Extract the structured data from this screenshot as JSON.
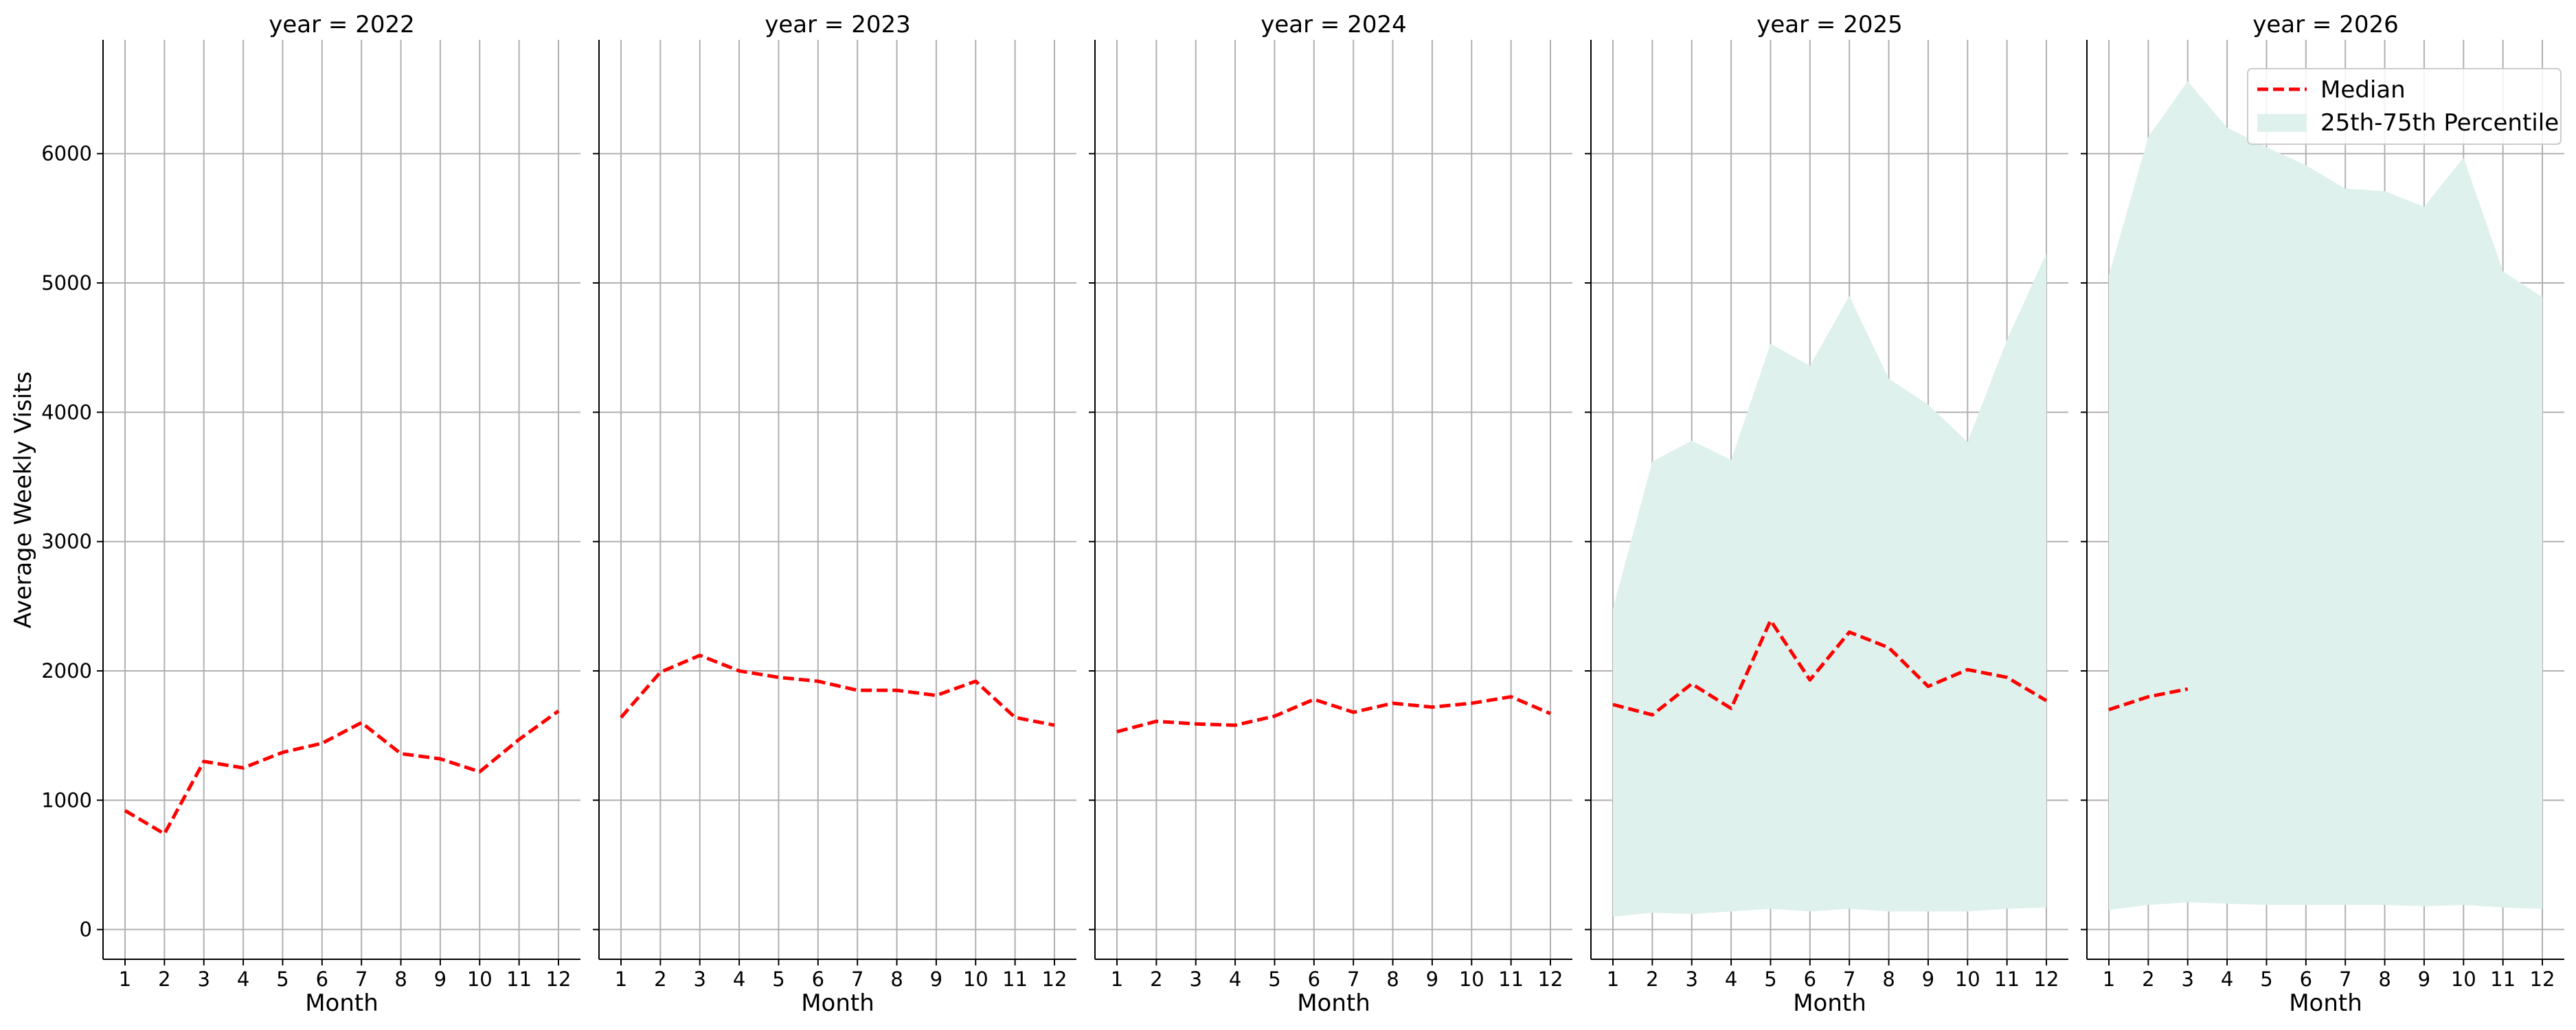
{
  "chart_data": {
    "type": "line",
    "ylabel": "Average Weekly Visits",
    "xlabel": "Month",
    "x": [
      1,
      2,
      3,
      4,
      5,
      6,
      7,
      8,
      9,
      10,
      11,
      12
    ],
    "xtick_labels": [
      "1",
      "2",
      "3",
      "4",
      "5",
      "6",
      "7",
      "8",
      "9",
      "10",
      "11",
      "12"
    ],
    "ylim": [
      -230,
      6880
    ],
    "yticks": [
      0,
      1000,
      2000,
      3000,
      4000,
      5000,
      6000
    ],
    "ytick_labels": [
      "0",
      "1000",
      "2000",
      "3000",
      "4000",
      "5000",
      "6000"
    ],
    "grid": true,
    "colors": {
      "median": "#ff0000",
      "band": "#dff1ec",
      "grid": "#b0b0b0",
      "axis": "#000000"
    },
    "legend": {
      "placement": "top-right",
      "entries": [
        {
          "label": "Median",
          "style": "dashed-line"
        },
        {
          "label": "25th-75th Percentile",
          "style": "filled-band"
        }
      ]
    },
    "panels": [
      {
        "title": "year = 2022",
        "median": [
          920,
          740,
          1300,
          1250,
          1370,
          1440,
          1600,
          1360,
          1320,
          1220,
          1470,
          1690
        ],
        "p25": [],
        "p75": []
      },
      {
        "title": "year = 2023",
        "median": [
          1640,
          1990,
          2120,
          2000,
          1950,
          1920,
          1850,
          1850,
          1810,
          1920,
          1640,
          1580
        ],
        "p25": [],
        "p75": []
      },
      {
        "title": "year = 2024",
        "median": [
          1530,
          1610,
          1590,
          1580,
          1650,
          1780,
          1680,
          1750,
          1720,
          1750,
          1800,
          1670
        ],
        "p25": [],
        "p75": []
      },
      {
        "title": "year = 2025",
        "median": [
          1740,
          1660,
          1900,
          1710,
          2390,
          1930,
          2300,
          2180,
          1880,
          2010,
          1950,
          1770
        ],
        "p25": [
          100,
          130,
          120,
          140,
          160,
          140,
          160,
          140,
          140,
          140,
          160,
          170
        ],
        "p75": [
          2480,
          3620,
          3780,
          3630,
          4530,
          4360,
          4900,
          4260,
          4060,
          3770,
          4560,
          5230
        ]
      },
      {
        "title": "year = 2026",
        "median": [
          1700,
          1800,
          1860
        ],
        "p25": [
          150,
          190,
          210,
          200,
          190,
          190,
          190,
          190,
          180,
          190,
          170,
          160
        ],
        "p75": [
          5060,
          6130,
          6560,
          6200,
          6050,
          5910,
          5730,
          5710,
          5590,
          5970,
          5090,
          4890
        ]
      }
    ]
  }
}
